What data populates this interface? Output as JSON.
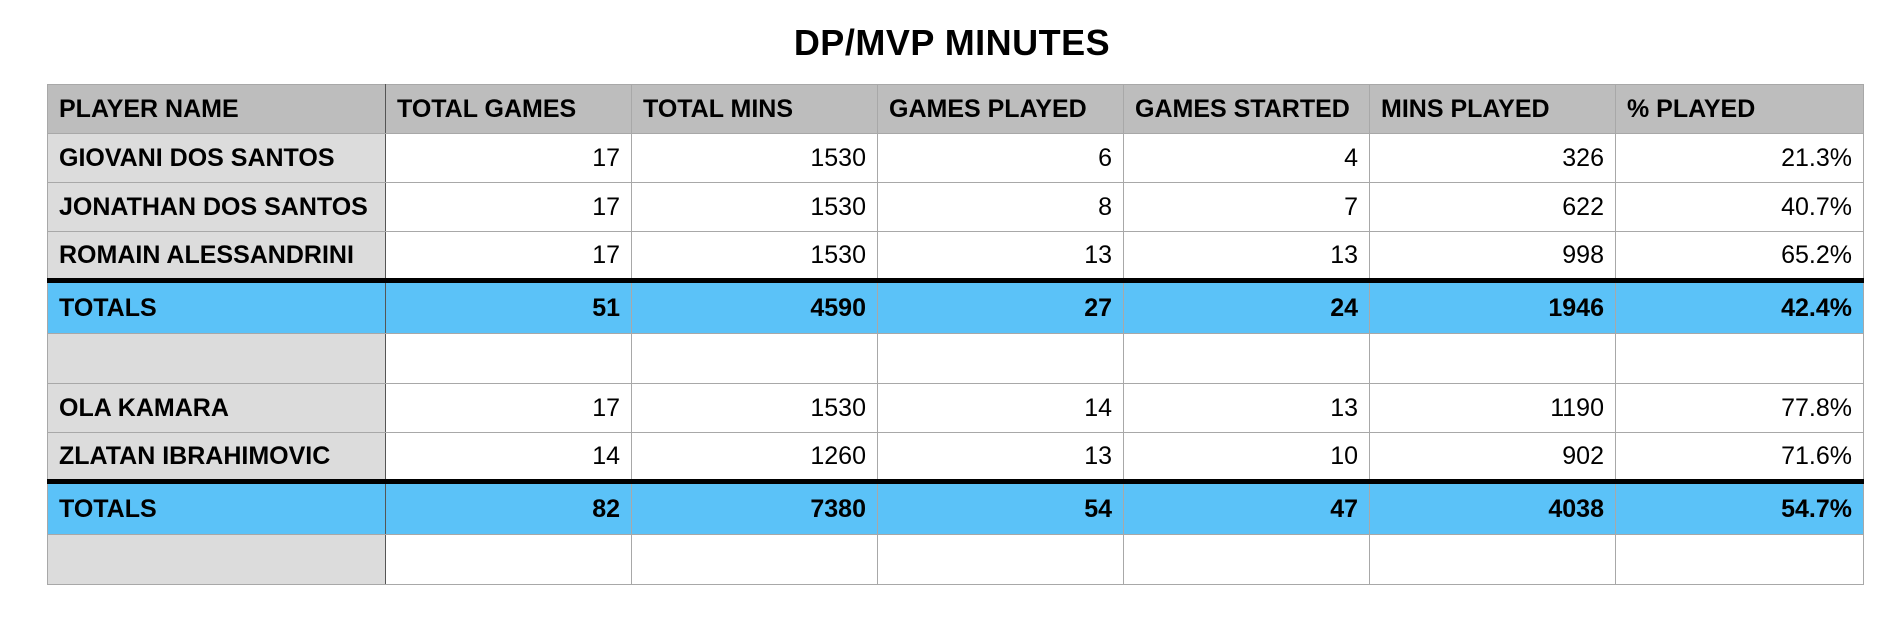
{
  "title": "DP/MVP MINUTES",
  "headers": [
    "PLAYER NAME",
    "TOTAL GAMES",
    "TOTAL MINS",
    "GAMES PLAYED",
    "GAMES STARTED",
    "MINS PLAYED",
    "% PLAYED"
  ],
  "group1": {
    "rows": [
      [
        "GIOVANI DOS SANTOS",
        "17",
        "1530",
        "6",
        "4",
        "326",
        "21.3%"
      ],
      [
        "JONATHAN DOS SANTOS",
        "17",
        "1530",
        "8",
        "7",
        "622",
        "40.7%"
      ],
      [
        "ROMAIN ALESSANDRINI",
        "17",
        "1530",
        "13",
        "13",
        "998",
        "65.2%"
      ]
    ],
    "totals": [
      "TOTALS",
      "51",
      "4590",
      "27",
      "24",
      "1946",
      "42.4%"
    ]
  },
  "group2": {
    "rows": [
      [
        "OLA KAMARA",
        "17",
        "1530",
        "14",
        "13",
        "1190",
        "77.8%"
      ],
      [
        "ZLATAN IBRAHIMOVIC",
        "14",
        "1260",
        "13",
        "10",
        "902",
        "71.6%"
      ]
    ],
    "totals": [
      "TOTALS",
      "82",
      "7380",
      "54",
      "47",
      "4038",
      "54.7%"
    ]
  },
  "colors": {
    "header_bg": "#bdbdbd",
    "name_col_bg": "#dcdcdc",
    "totals_bg": "#5bc2f8"
  }
}
